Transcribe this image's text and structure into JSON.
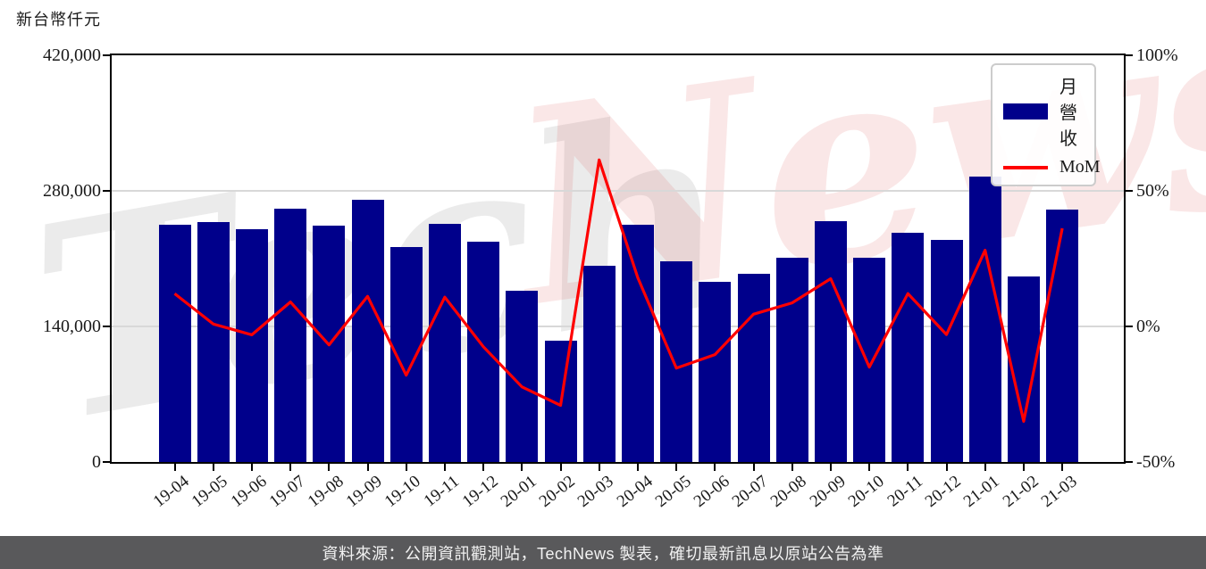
{
  "title": {
    "unit_label": "新台幣仟元"
  },
  "legend": {
    "bar_label": "月營收",
    "line_label": "MoM"
  },
  "watermark": {
    "left_text": "Tech",
    "right_text": "News",
    "full_text": "TechNews"
  },
  "footer": {
    "text": "資料來源：公開資訊觀測站，TechNews 製表，確切最新訊息以原站公告為準"
  },
  "colors": {
    "bar": "#00008B",
    "line": "#ff0000",
    "grid": "#d8d8d8",
    "axis": "#000000",
    "footer_bg": "#59595b",
    "footer_text": "#f2f2f2"
  },
  "chart_data": {
    "type": "bar",
    "combo": "bar+line",
    "title": "新台幣仟元",
    "categories": [
      "19-04",
      "19-05",
      "19-06",
      "19-07",
      "19-08",
      "19-09",
      "19-10",
      "19-11",
      "19-12",
      "20-01",
      "20-02",
      "20-03",
      "20-04",
      "20-05",
      "20-06",
      "20-07",
      "20-08",
      "20-09",
      "20-10",
      "20-11",
      "20-12",
      "21-01",
      "21-02",
      "21-03"
    ],
    "series": [
      {
        "name": "月營收",
        "type": "bar",
        "axis": "left",
        "unit": "新台幣仟元",
        "color": "#00008B",
        "values": [
          245500,
          247700,
          240000,
          261500,
          243700,
          270800,
          222100,
          246100,
          227700,
          176900,
          125500,
          202500,
          245500,
          207700,
          186100,
          194400,
          211400,
          248600,
          211400,
          236900,
          229800,
          294400,
          191400,
          260600
        ]
      },
      {
        "name": "MoM",
        "type": "line",
        "axis": "right",
        "unit": "%",
        "color": "#ff0000",
        "values": [
          12.1,
          0.9,
          -3.1,
          9.0,
          -6.8,
          11.1,
          -18.0,
          10.8,
          -7.5,
          -22.3,
          -29.1,
          61.4,
          18.0,
          -15.4,
          -10.4,
          4.5,
          8.7,
          17.6,
          -15.0,
          12.1,
          -3.0,
          28.1,
          -35.0,
          36.2
        ]
      }
    ],
    "y_left": {
      "min": 0,
      "max": 420000,
      "ticks": [
        0,
        140000,
        280000,
        420000
      ],
      "tick_labels": [
        "0",
        "140,000",
        "280,000",
        "420,000"
      ]
    },
    "y_right": {
      "min": -50,
      "max": 100,
      "ticks": [
        -50,
        0,
        50,
        100
      ],
      "tick_labels": [
        "-50%",
        "0%",
        "50%",
        "100%"
      ]
    },
    "grid": "horizontal",
    "legend_position": "top-right",
    "xlabel": "",
    "ylabel": "新台幣仟元"
  }
}
